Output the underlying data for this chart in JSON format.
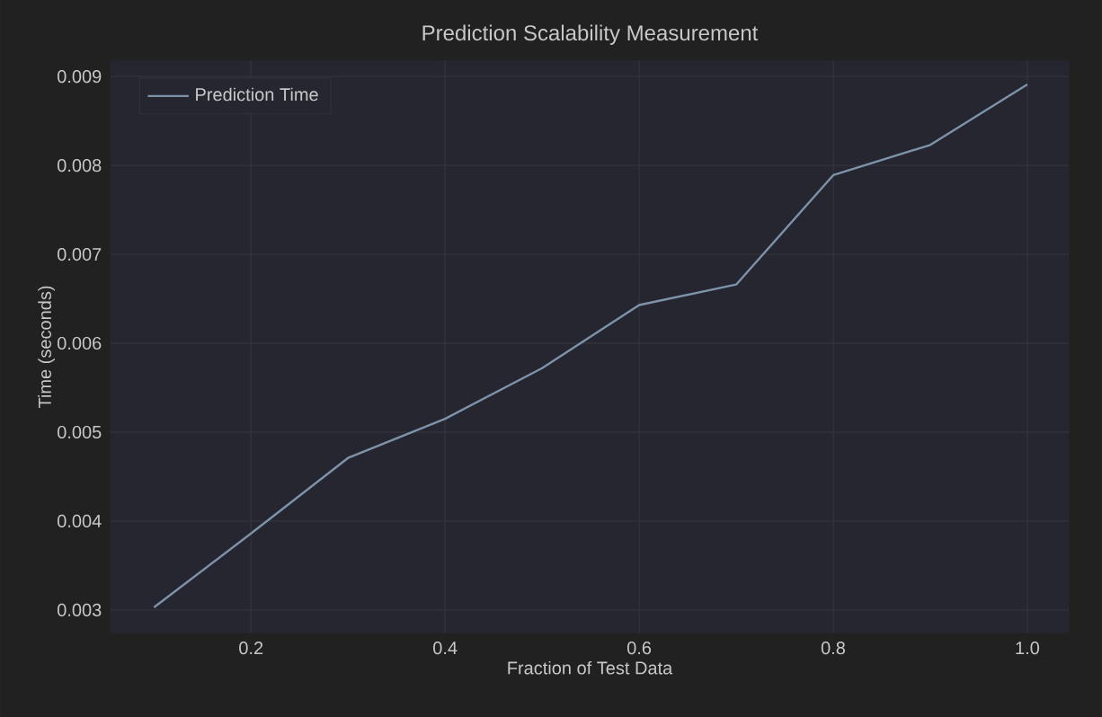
{
  "chart_data": {
    "type": "line",
    "title": "Prediction Scalability Measurement",
    "xlabel": "Fraction of Test Data",
    "ylabel": "Time (seconds)",
    "x": [
      0.1,
      0.2,
      0.3,
      0.4,
      0.5,
      0.6,
      0.7,
      0.8,
      0.9,
      1.0
    ],
    "series": [
      {
        "name": "Prediction Time",
        "color": "#7d93aa",
        "values": [
          0.00303,
          0.00386,
          0.00471,
          0.00515,
          0.00572,
          0.00643,
          0.00666,
          0.00789,
          0.00823,
          0.00891
        ]
      }
    ],
    "xlim": [
      0.055,
      1.043
    ],
    "ylim": [
      0.00274,
      0.00918
    ],
    "xticks": [
      0.2,
      0.4,
      0.6,
      0.8,
      {
        "value": 1.0,
        "label": "1.0"
      }
    ],
    "yticks": [
      0.003,
      0.004,
      0.005,
      0.006,
      0.007,
      0.008,
      0.009
    ],
    "grid": true,
    "legend": "top left",
    "marker": "none",
    "line_style": "solid"
  }
}
